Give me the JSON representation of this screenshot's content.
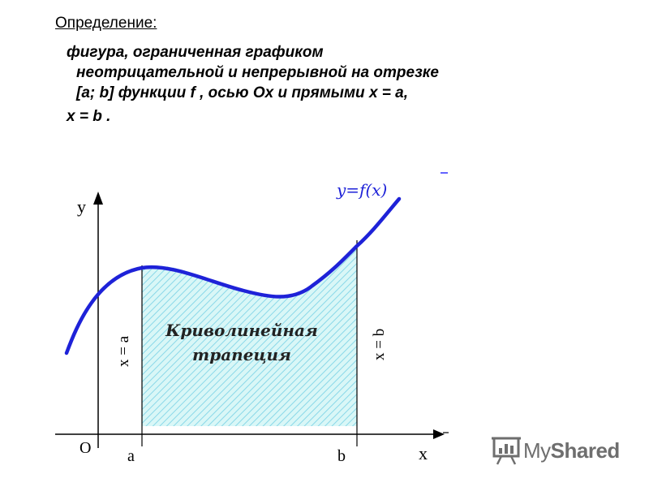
{
  "heading": "Определение:",
  "definition": {
    "lines": [
      "фигура, ограниченная графиком",
      "неотрицательной и непрерывной на отрезке",
      "[a; b] функции   f , осью Ox и прямыми x = a,",
      "x = b ."
    ]
  },
  "diagram": {
    "axis_y_label": "y",
    "axis_x_label": "x",
    "origin_label": "O",
    "tick_a_label": "a",
    "tick_b_label": "b",
    "curve_label": "y=f(x)",
    "line_a_label": "x = a",
    "line_b_label": "x = b",
    "region_label_line1": "Криволинейная",
    "region_label_line2": "трапеция",
    "colors": {
      "curve": "#1e22d8",
      "fill": "#d9f7f7",
      "hatch": "#8ad8e8",
      "axes": "#000000"
    }
  },
  "watermark": {
    "text_prefix": "My",
    "text_suffix": "Shared",
    "icon": "projector-screen-icon"
  }
}
